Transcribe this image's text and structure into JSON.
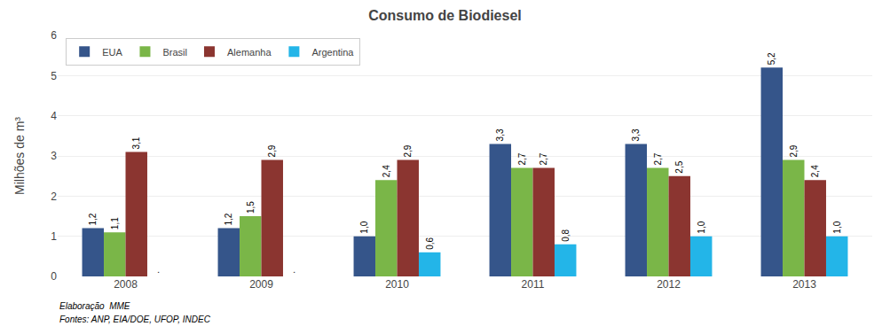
{
  "chart_data": {
    "type": "bar",
    "title": "Consumo de Biodiesel",
    "y_label": "Milhões de m³",
    "categories": [
      "2008",
      "2009",
      "2010",
      "2011",
      "2012",
      "2013"
    ],
    "series": [
      {
        "name": "EUA",
        "color": "#35558a",
        "values": [
          1.2,
          1.2,
          1.0,
          3.3,
          3.3,
          5.2
        ],
        "value_labels": [
          "1,2",
          "1,2",
          "1,0",
          "3,3",
          "3,3",
          "5,2"
        ]
      },
      {
        "name": "Brasil",
        "color": "#7ab648",
        "values": [
          1.1,
          1.5,
          2.4,
          2.7,
          2.7,
          2.9
        ],
        "value_labels": [
          "1,1",
          "1,5",
          "2,4",
          "2,7",
          "2,7",
          "2,9"
        ]
      },
      {
        "name": "Alemanha",
        "color": "#8b3530",
        "values": [
          3.1,
          2.9,
          2.9,
          2.7,
          2.5,
          2.4
        ],
        "value_labels": [
          "3,1",
          "2,9",
          "2,9",
          "2,7",
          "2,5",
          "2,4"
        ]
      },
      {
        "name": "Argentina",
        "color": "#23b5e8",
        "values": [
          0.0,
          0.0,
          0.6,
          0.8,
          1.0,
          1.0
        ],
        "value_labels": [
          "·",
          "·",
          "0,6",
          "0,8",
          "1,0",
          "1,0"
        ]
      }
    ],
    "ylim": [
      0,
      6
    ],
    "yticks": [
      0,
      1,
      2,
      3,
      4,
      5,
      6
    ],
    "grid": true,
    "legend": "upper left",
    "data_labels": true,
    "annotations": [
      "Elaboração  MME",
      "Fontes: ANP, EIA/DOE, UFOP, INDEC"
    ]
  }
}
